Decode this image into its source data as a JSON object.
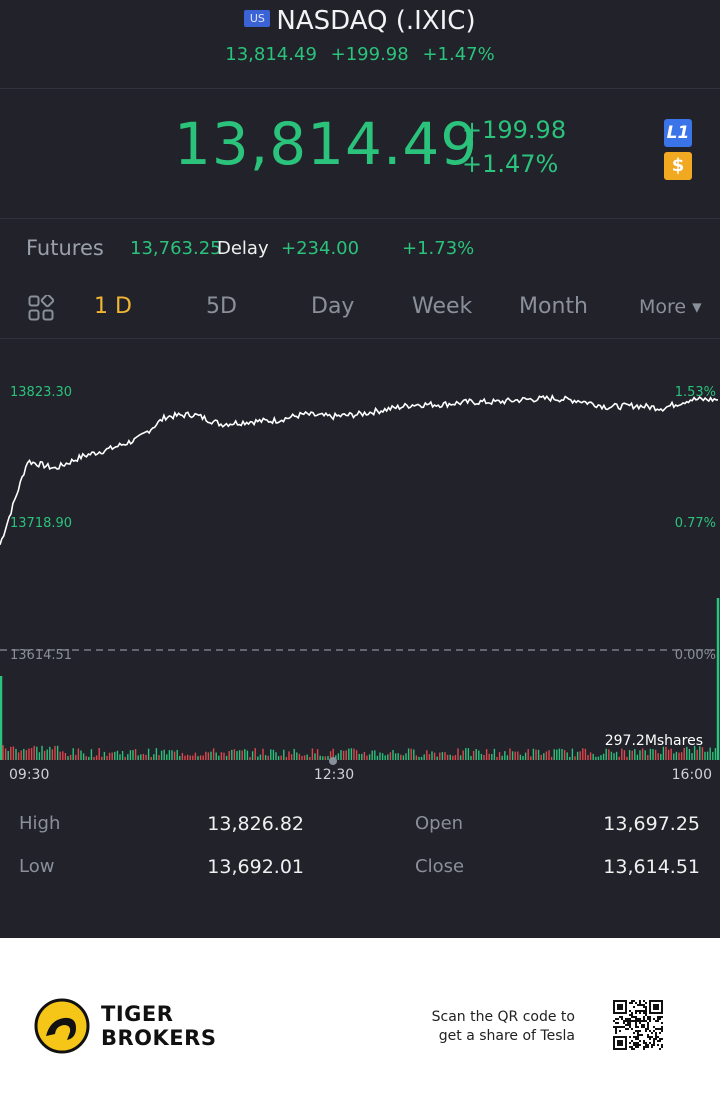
{
  "header": {
    "flag": "US",
    "title": "NASDAQ (.IXIC)",
    "price": "13,814.49",
    "change": "+199.98",
    "change_pct": "+1.47%"
  },
  "quote": {
    "price": "13,814.49",
    "change": "+199.98",
    "change_pct": "+1.47%",
    "badges": [
      "L1",
      "$"
    ]
  },
  "futures": {
    "label": "Futures",
    "price": "13,763.25",
    "delay_label": "Delay",
    "change": "+234.00",
    "change_pct": "+1.73%"
  },
  "tabs": {
    "items": [
      "1 D",
      "5D",
      "Day",
      "Week",
      "Month"
    ],
    "active": "1 D",
    "more_label": "More ▾"
  },
  "chart_data": {
    "type": "line",
    "y_left_ticks": [
      "13823.30",
      "13718.90",
      "13614.51"
    ],
    "y_right_ticks": [
      "1.53%",
      "0.77%",
      "0.00%"
    ],
    "x_ticks": [
      "09:30",
      "12:30",
      "16:00"
    ],
    "previous_close": 13614.51,
    "volume_label": "297.2Mshares",
    "series": [
      {
        "x": [
          "09:30",
          "09:45",
          "10:00",
          "10:15",
          "10:30",
          "10:45",
          "11:00",
          "11:15",
          "11:30",
          "11:45",
          "12:00",
          "12:15",
          "12:30",
          "12:45",
          "13:00",
          "13:15",
          "13:30",
          "13:45",
          "14:00",
          "14:15",
          "14:30",
          "14:45",
          "15:00",
          "15:15",
          "15:30",
          "15:45",
          "16:00"
        ],
        "values": [
          13700,
          13768,
          13762,
          13772,
          13778,
          13786,
          13804,
          13806,
          13798,
          13800,
          13801,
          13806,
          13804,
          13806,
          13810,
          13814,
          13814,
          13816,
          13816,
          13818,
          13819,
          13817,
          13812,
          13813,
          13811,
          13818,
          13818
        ]
      }
    ],
    "colors": {
      "line": "#ffffff",
      "up": "#2bc27b",
      "down": "#e0474c",
      "grid_dash": "#8a909a"
    }
  },
  "stats": {
    "high_label": "High",
    "high": "13,826.82",
    "low_label": "Low",
    "low": "13,692.01",
    "open_label": "Open",
    "open": "13,697.25",
    "close_label": "Close",
    "close": "13,614.51"
  },
  "footer": {
    "brand_line1": "TIGER",
    "brand_line2": "BROKERS",
    "qr_text_line1": "Scan the QR code to",
    "qr_text_line2": "get a share of Tesla"
  }
}
